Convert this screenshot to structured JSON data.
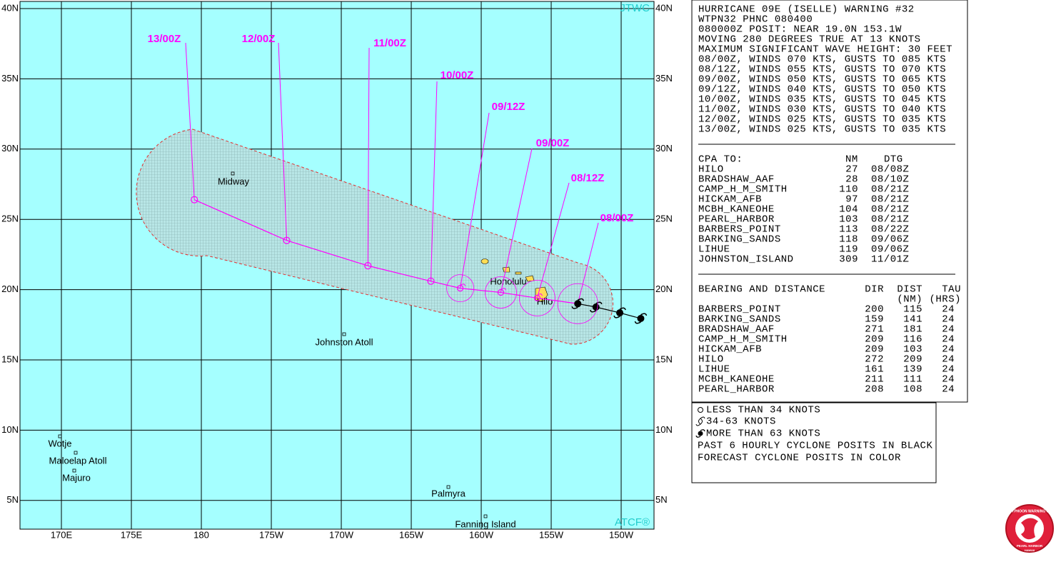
{
  "map": {
    "type": "map",
    "source_top": "JTWC",
    "source_bottom": "ATCF®",
    "lat_ticks": [
      {
        "value": 40,
        "label": "40N"
      },
      {
        "value": 35,
        "label": "35N"
      },
      {
        "value": 30,
        "label": "30N"
      },
      {
        "value": 25,
        "label": "25N"
      },
      {
        "value": 20,
        "label": "20N"
      },
      {
        "value": 15,
        "label": "15N"
      },
      {
        "value": 10,
        "label": "10N"
      },
      {
        "value": 5,
        "label": "5N"
      }
    ],
    "lon_ticks": [
      {
        "value": 170,
        "label": "170E"
      },
      {
        "value": 175,
        "label": "175E"
      },
      {
        "value": 180,
        "label": "180"
      },
      {
        "value": 185,
        "label": "175W"
      },
      {
        "value": 190,
        "label": "170W"
      },
      {
        "value": 195,
        "label": "165W"
      },
      {
        "value": 200,
        "label": "160W"
      },
      {
        "value": 205,
        "label": "155W"
      },
      {
        "value": 210,
        "label": "150W"
      }
    ],
    "track": {
      "past": [
        {
          "lat": 17.95,
          "lon": 211.4
        },
        {
          "lat": 18.35,
          "lon": 209.9
        },
        {
          "lat": 18.76,
          "lon": 208.2
        }
      ],
      "forecast": [
        {
          "time": "08/00Z",
          "lat": 19.0,
          "lon": 206.9
        },
        {
          "time": "08/12Z",
          "lat": 19.4,
          "lon": 204.0
        },
        {
          "time": "09/00Z",
          "lat": 19.8,
          "lon": 201.4
        },
        {
          "time": "09/12Z",
          "lat": 20.1,
          "lon": 198.5
        },
        {
          "time": "10/00Z",
          "lat": 20.6,
          "lon": 196.4
        },
        {
          "time": "11/00Z",
          "lat": 21.7,
          "lon": 191.9
        },
        {
          "time": "12/00Z",
          "lat": 23.5,
          "lon": 186.1
        },
        {
          "time": "13/00Z",
          "lat": 26.4,
          "lon": 179.5
        }
      ]
    },
    "places": [
      "Midway",
      "Honolulu",
      "Hilo",
      "Johnston Atoll",
      "Wotje",
      "Maloelap Atoll",
      "Majuro",
      "Palmyra",
      "Fanning Island"
    ]
  },
  "warning": {
    "lines": [
      "HURRICANE 09E (ISELLE) WARNING #32",
      "WTPN32 PHNC 080400",
      "080000Z POSIT: NEAR 19.0N 153.1W",
      "MOVING 280 DEGREES TRUE AT 13 KNOTS",
      "MAXIMUM SIGNIFICANT WAVE HEIGHT: 30 FEET",
      "08/00Z, WINDS 070 KTS, GUSTS TO 085 KTS",
      "08/12Z, WINDS 055 KTS, GUSTS TO 070 KTS",
      "09/00Z, WINDS 050 KTS, GUSTS TO 065 KTS",
      "09/12Z, WINDS 040 KTS, GUSTS TO 050 KTS",
      "10/00Z, WINDS 035 KTS, GUSTS TO 045 KTS",
      "11/00Z, WINDS 030 KTS, GUSTS TO 040 KTS",
      "12/00Z, WINDS 025 KTS, GUSTS TO 035 KTS",
      "13/00Z, WINDS 025 KTS, GUSTS TO 035 KTS"
    ]
  },
  "cpa": {
    "headers": [
      "CPA TO:",
      "NM",
      "DTG"
    ],
    "rows": [
      [
        "HILO",
        27,
        "08/08Z"
      ],
      [
        "BRADSHAW_AAF",
        28,
        "08/10Z"
      ],
      [
        "CAMP_H_M_SMITH",
        110,
        "08/21Z"
      ],
      [
        "HICKAM_AFB",
        97,
        "08/21Z"
      ],
      [
        "MCBH_KANEOHE",
        104,
        "08/21Z"
      ],
      [
        "PEARL_HARBOR",
        103,
        "08/21Z"
      ],
      [
        "BARBERS_POINT",
        113,
        "08/22Z"
      ],
      [
        "BARKING_SANDS",
        118,
        "09/06Z"
      ],
      [
        "LIHUE",
        119,
        "09/06Z"
      ],
      [
        "JOHNSTON_ISLAND",
        309,
        "11/01Z"
      ]
    ]
  },
  "bearing": {
    "headers": [
      "BEARING AND DISTANCE",
      "DIR",
      "DIST",
      "TAU"
    ],
    "units": [
      "(NM)",
      "(HRS)"
    ],
    "rows": [
      [
        "BARBERS_POINT",
        200,
        115,
        24
      ],
      [
        "BARKING_SANDS",
        159,
        141,
        24
      ],
      [
        "BRADSHAW_AAF",
        271,
        181,
        24
      ],
      [
        "CAMP_H_M_SMITH",
        209,
        116,
        24
      ],
      [
        "HICKAM_AFB",
        209,
        103,
        24
      ],
      [
        "HILO",
        272,
        209,
        24
      ],
      [
        "LIHUE",
        161,
        139,
        24
      ],
      [
        "MCBH_KANEOHE",
        211,
        111,
        24
      ],
      [
        "PEARL_HARBOR",
        208,
        108,
        24
      ]
    ]
  },
  "legend": [
    "LESS THAN 34 KNOTS",
    "34-63 KNOTS",
    "MORE THAN 63 KNOTS",
    "PAST 6 HOURLY CYCLONE POSITS IN BLACK",
    "FORECAST CYCLONE POSITS IN COLOR"
  ],
  "logo": [
    "JOINT TYPHOON WARNING CENTER",
    "PEARL HARBOR",
    "HAWAII"
  ]
}
